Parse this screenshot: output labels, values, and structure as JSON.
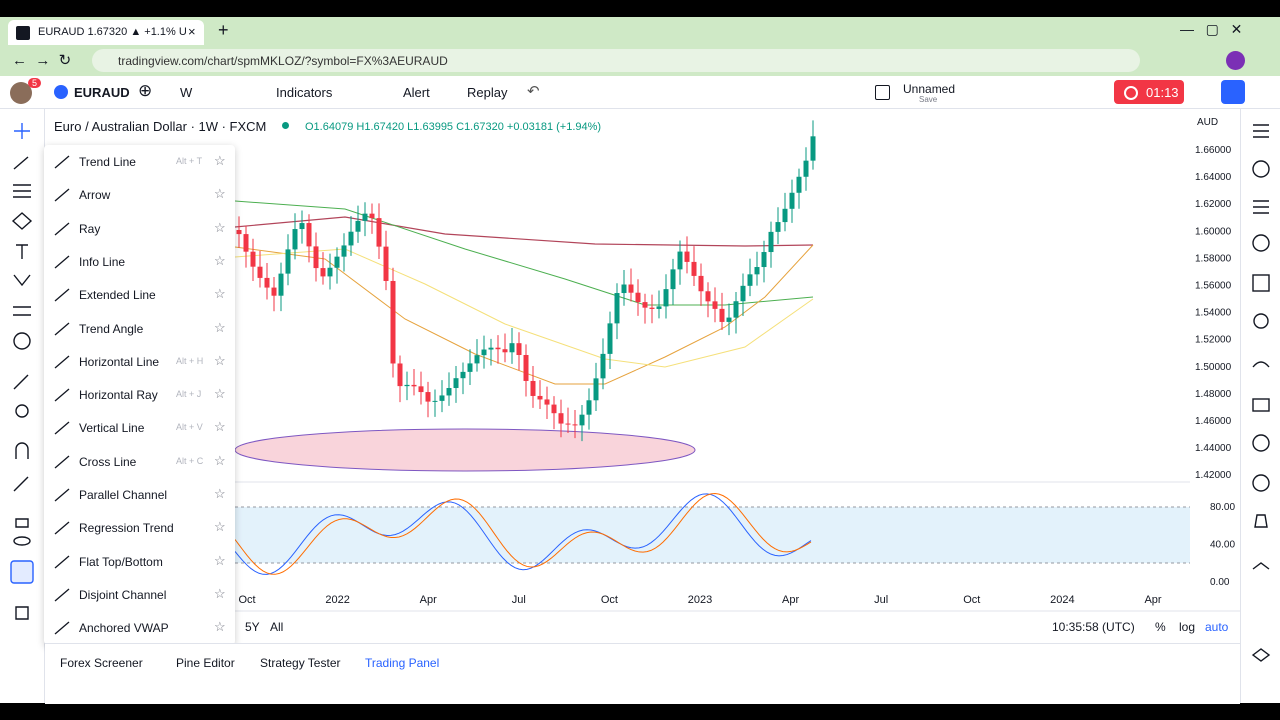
{
  "browser": {
    "tab_title": "EURAUD 1.67320 ▲ +1.1% U",
    "url": "tradingview.com/chart/spmMKLOZ/?symbol=FX%3AEURAUD"
  },
  "toolbar": {
    "badge": "5",
    "symbol": "EURAUD",
    "interval": "W",
    "indicators": "Indicators",
    "alert": "Alert",
    "replay": "Replay",
    "layout_name": "Unnamed",
    "save": "Save",
    "timer": "01:13"
  },
  "chart": {
    "title": "Euro / Australian Dollar · 1W · FXCM",
    "open": "O1.64079",
    "high": "H1.67420",
    "low": "L1.63995",
    "close": "C1.67320",
    "change": "+0.03181 (+1.94%)",
    "currency": "AUD",
    "price_labels": [
      "1.66000",
      "1.64000",
      "1.62000",
      "1.60000",
      "1.58000",
      "1.56000",
      "1.54000",
      "1.52000",
      "1.50000",
      "1.48000",
      "1.46000",
      "1.44000",
      "1.42000"
    ],
    "oscillator_labels": [
      "80.00",
      "40.00",
      "0.00"
    ],
    "time_labels": [
      "Oct",
      "2022",
      "Apr",
      "Jul",
      "Oct",
      "2023",
      "Apr",
      "Jul",
      "Oct",
      "2024",
      "Apr"
    ]
  },
  "drawing_menu": [
    {
      "label": "Trend Line",
      "shortcut": "Alt + T"
    },
    {
      "label": "Arrow"
    },
    {
      "label": "Ray"
    },
    {
      "label": "Info Line"
    },
    {
      "label": "Extended Line"
    },
    {
      "label": "Trend Angle"
    },
    {
      "label": "Horizontal Line",
      "shortcut": "Alt + H"
    },
    {
      "label": "Horizontal Ray",
      "shortcut": "Alt + J"
    },
    {
      "label": "Vertical Line",
      "shortcut": "Alt + V"
    },
    {
      "label": "Cross Line",
      "shortcut": "Alt + C"
    },
    {
      "label": "Parallel Channel"
    },
    {
      "label": "Regression Trend"
    },
    {
      "label": "Flat Top/Bottom"
    },
    {
      "label": "Disjoint Channel"
    },
    {
      "label": "Anchored VWAP"
    }
  ],
  "bottom_bar": {
    "ranges": [
      "5Y",
      "All"
    ],
    "clock": "10:35:58 (UTC)",
    "percent": "%",
    "log": "log",
    "auto": "auto"
  },
  "bottom_tabs": [
    "Forex Screener",
    "Pine Editor",
    "Strategy Tester",
    "Trading Panel"
  ]
}
